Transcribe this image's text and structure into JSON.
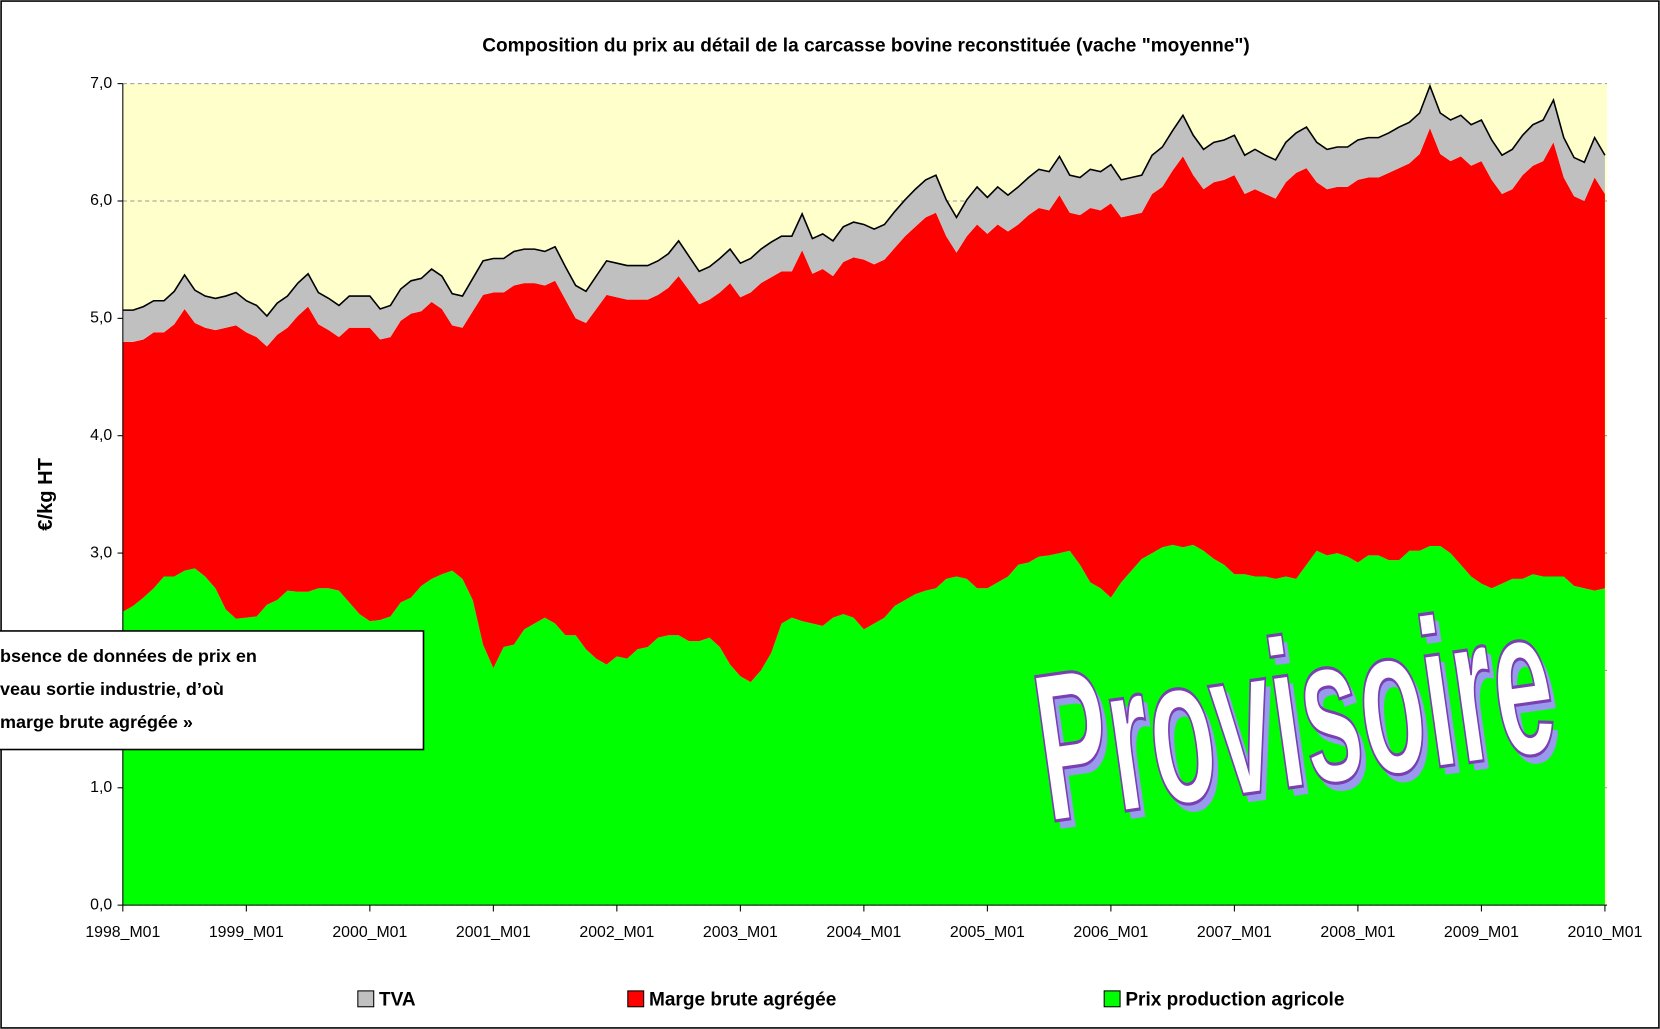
{
  "chart_data": {
    "type": "stacked_area",
    "title": "Composition du prix au détail de la carcasse bovine reconstituée (vache \"moyenne\")",
    "y_label": "€/kg HT",
    "ylim": [
      0,
      7
    ],
    "yticks": [
      {
        "value": 0,
        "label": "0,0"
      },
      {
        "value": 1,
        "label": "1,0"
      },
      {
        "value": 2,
        "label": "2,0"
      },
      {
        "value": 3,
        "label": "3,0"
      },
      {
        "value": 4,
        "label": "4,0"
      },
      {
        "value": 5,
        "label": "5,0"
      },
      {
        "value": 6,
        "label": "6,0"
      },
      {
        "value": 7,
        "label": "7,0"
      }
    ],
    "grid": true,
    "background": "#ffffcc",
    "legend": "bottom",
    "categories": [
      "1998_M01",
      null,
      null,
      null,
      null,
      null,
      null,
      null,
      null,
      null,
      null,
      null,
      "1999_M01",
      null,
      null,
      null,
      null,
      null,
      null,
      null,
      null,
      null,
      null,
      null,
      "2000_M01",
      null,
      null,
      null,
      null,
      null,
      null,
      null,
      null,
      null,
      null,
      null,
      "2001_M01",
      null,
      null,
      null,
      null,
      null,
      null,
      null,
      null,
      null,
      null,
      null,
      "2002_M01",
      null,
      null,
      null,
      null,
      null,
      null,
      null,
      null,
      null,
      null,
      null,
      "2003_M01",
      null,
      null,
      null,
      null,
      null,
      null,
      null,
      null,
      null,
      null,
      null,
      "2004_M01",
      null,
      null,
      null,
      null,
      null,
      null,
      null,
      null,
      null,
      null,
      null,
      "2005_M01",
      null,
      null,
      null,
      null,
      null,
      null,
      null,
      null,
      null,
      null,
      null,
      "2006_M01",
      null,
      null,
      null,
      null,
      null,
      null,
      null,
      null,
      null,
      null,
      null,
      "2007_M01",
      null,
      null,
      null,
      null,
      null,
      null,
      null,
      null,
      null,
      null,
      null,
      "2008_M01",
      null,
      null,
      null,
      null,
      null,
      null,
      null,
      null,
      null,
      null,
      null,
      "2009_M01",
      null,
      null,
      null,
      null,
      null,
      null,
      null,
      null,
      null,
      null,
      null,
      "2010_M01"
    ],
    "series": [
      {
        "name": "TVA",
        "color": "#c0c0c0",
        "values": [
          0.27,
          0.27,
          0.28,
          0.27,
          0.27,
          0.28,
          0.29,
          0.28,
          0.27,
          0.27,
          0.27,
          0.28,
          0.27,
          0.27,
          0.26,
          0.27,
          0.27,
          0.28,
          0.28,
          0.27,
          0.27,
          0.27,
          0.27,
          0.27,
          0.27,
          0.26,
          0.27,
          0.27,
          0.28,
          0.28,
          0.28,
          0.28,
          0.27,
          0.27,
          0.28,
          0.29,
          0.29,
          0.29,
          0.29,
          0.29,
          0.29,
          0.29,
          0.29,
          0.28,
          0.28,
          0.27,
          0.28,
          0.29,
          0.29,
          0.29,
          0.29,
          0.29,
          0.29,
          0.29,
          0.3,
          0.29,
          0.28,
          0.28,
          0.29,
          0.29,
          0.29,
          0.29,
          0.29,
          0.3,
          0.3,
          0.3,
          0.31,
          0.3,
          0.3,
          0.3,
          0.3,
          0.3,
          0.3,
          0.3,
          0.3,
          0.31,
          0.31,
          0.32,
          0.32,
          0.32,
          0.31,
          0.3,
          0.31,
          0.32,
          0.31,
          0.32,
          0.31,
          0.32,
          0.32,
          0.33,
          0.33,
          0.33,
          0.32,
          0.32,
          0.33,
          0.33,
          0.33,
          0.32,
          0.32,
          0.32,
          0.33,
          0.34,
          0.34,
          0.35,
          0.34,
          0.34,
          0.34,
          0.34,
          0.34,
          0.33,
          0.34,
          0.33,
          0.33,
          0.34,
          0.34,
          0.35,
          0.34,
          0.34,
          0.34,
          0.34,
          0.34,
          0.34,
          0.34,
          0.34,
          0.35,
          0.35,
          0.35,
          0.36,
          0.35,
          0.35,
          0.35,
          0.35,
          0.35,
          0.34,
          0.33,
          0.34,
          0.34,
          0.35,
          0.35,
          0.36,
          0.34,
          0.33,
          0.33,
          0.34,
          0.33
        ]
      },
      {
        "name": "Marge brute agrégée",
        "color": "#ff0000",
        "values": [
          2.3,
          2.25,
          2.2,
          2.18,
          2.08,
          2.15,
          2.23,
          2.09,
          2.12,
          2.2,
          2.4,
          2.5,
          2.43,
          2.38,
          2.2,
          2.26,
          2.24,
          2.35,
          2.43,
          2.25,
          2.2,
          2.16,
          2.34,
          2.44,
          2.5,
          2.39,
          2.38,
          2.4,
          2.42,
          2.34,
          2.36,
          2.26,
          2.09,
          2.14,
          2.46,
          2.98,
          3.2,
          3.02,
          3.06,
          2.95,
          2.9,
          2.83,
          2.92,
          2.86,
          2.7,
          2.78,
          2.98,
          3.15,
          3.06,
          3.06,
          2.98,
          2.96,
          2.92,
          2.96,
          3.06,
          2.99,
          2.87,
          2.88,
          3.02,
          3.25,
          3.23,
          3.32,
          3.3,
          3.2,
          3.0,
          2.95,
          3.16,
          2.98,
          3.04,
          2.91,
          3.0,
          3.07,
          3.15,
          3.06,
          3.05,
          3.05,
          3.1,
          3.13,
          3.18,
          3.2,
          2.92,
          2.76,
          2.92,
          3.1,
          3.02,
          3.05,
          2.94,
          2.9,
          2.96,
          2.97,
          2.94,
          3.05,
          2.88,
          2.98,
          3.19,
          3.22,
          3.36,
          3.11,
          3.03,
          2.95,
          3.06,
          3.07,
          3.19,
          3.33,
          3.15,
          3.08,
          3.21,
          3.28,
          3.4,
          3.24,
          3.3,
          3.26,
          3.24,
          3.36,
          3.46,
          3.38,
          3.14,
          3.12,
          3.12,
          3.15,
          3.26,
          3.22,
          3.22,
          3.3,
          3.34,
          3.3,
          3.38,
          3.56,
          3.34,
          3.34,
          3.48,
          3.5,
          3.6,
          3.48,
          3.32,
          3.32,
          3.44,
          3.48,
          3.54,
          3.7,
          3.4,
          3.32,
          3.3,
          3.52,
          3.36
        ]
      },
      {
        "name": "Prix production agricole",
        "color": "#00ff00",
        "values": [
          2.5,
          2.55,
          2.62,
          2.7,
          2.8,
          2.8,
          2.85,
          2.87,
          2.8,
          2.7,
          2.52,
          2.44,
          2.45,
          2.46,
          2.56,
          2.6,
          2.68,
          2.67,
          2.67,
          2.7,
          2.7,
          2.68,
          2.58,
          2.48,
          2.42,
          2.43,
          2.46,
          2.58,
          2.62,
          2.72,
          2.78,
          2.82,
          2.85,
          2.78,
          2.6,
          2.22,
          2.02,
          2.2,
          2.22,
          2.35,
          2.4,
          2.45,
          2.4,
          2.3,
          2.3,
          2.18,
          2.1,
          2.05,
          2.12,
          2.1,
          2.18,
          2.2,
          2.28,
          2.3,
          2.3,
          2.25,
          2.25,
          2.28,
          2.2,
          2.05,
          1.95,
          1.9,
          2.0,
          2.15,
          2.4,
          2.45,
          2.42,
          2.4,
          2.38,
          2.45,
          2.48,
          2.45,
          2.35,
          2.4,
          2.45,
          2.55,
          2.6,
          2.65,
          2.68,
          2.7,
          2.78,
          2.8,
          2.78,
          2.7,
          2.7,
          2.75,
          2.8,
          2.9,
          2.92,
          2.97,
          2.98,
          3.0,
          3.02,
          2.9,
          2.75,
          2.7,
          2.62,
          2.75,
          2.85,
          2.95,
          3.0,
          3.05,
          3.07,
          3.05,
          3.07,
          3.02,
          2.95,
          2.9,
          2.82,
          2.82,
          2.8,
          2.8,
          2.78,
          2.8,
          2.78,
          2.9,
          3.02,
          2.98,
          3.0,
          2.97,
          2.92,
          2.98,
          2.98,
          2.94,
          2.94,
          3.02,
          3.02,
          3.06,
          3.06,
          3.0,
          2.9,
          2.8,
          2.74,
          2.7,
          2.74,
          2.78,
          2.78,
          2.82,
          2.8,
          2.8,
          2.8,
          2.72,
          2.7,
          2.68,
          2.7
        ]
      }
    ],
    "annotation": [
      "bsence de données de prix en",
      "veau sortie industrie, d’où",
      "marge brute agrégée »"
    ],
    "watermark": "Provisoire"
  }
}
